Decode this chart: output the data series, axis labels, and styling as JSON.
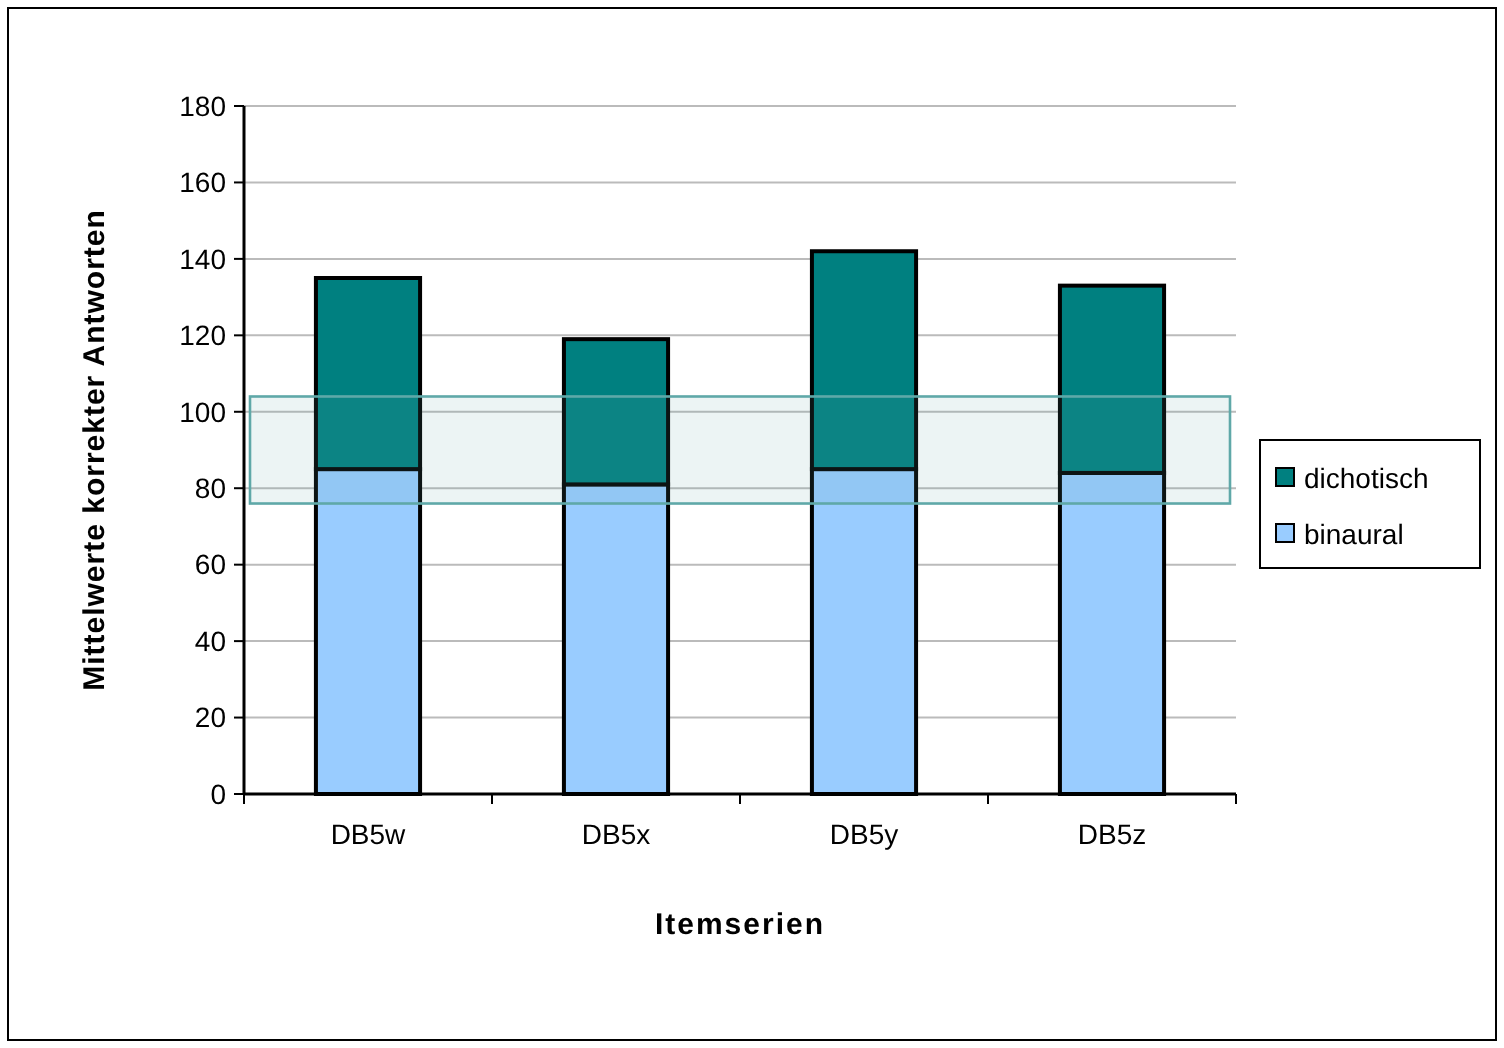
{
  "chart_data": {
    "type": "bar",
    "stacked": true,
    "xlabel": "Itemserien",
    "ylabel": "Mittelwerte korrekter Antworten",
    "categories": [
      "DB5w",
      "DB5x",
      "DB5y",
      "DB5z"
    ],
    "series": [
      {
        "name": "binaural",
        "color": "#99ccff",
        "values": [
          85,
          81,
          85,
          84
        ]
      },
      {
        "name": "dichotisch",
        "color": "#008080",
        "values": [
          50,
          38,
          57,
          49
        ]
      }
    ],
    "ylim": [
      0,
      180
    ],
    "yticks": [
      0,
      20,
      40,
      60,
      80,
      100,
      120,
      140,
      160,
      180
    ],
    "grid": "y",
    "legend": "right",
    "bands": [
      {
        "axis": "y",
        "from": 76,
        "to": 104,
        "color": "#5fa8a8"
      }
    ]
  }
}
